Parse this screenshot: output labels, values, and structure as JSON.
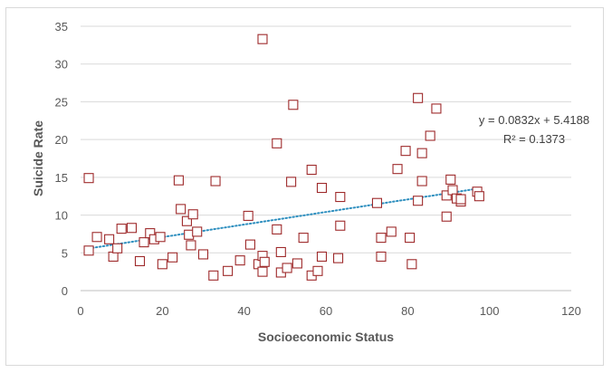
{
  "chart_data": {
    "type": "scatter",
    "xlabel": "Socioeconomic Status",
    "ylabel": "Suicide Rate",
    "xlim": [
      0,
      120
    ],
    "ylim": [
      0,
      35
    ],
    "xticks": [
      "0",
      "20",
      "40",
      "60",
      "80",
      "100",
      "120"
    ],
    "yticks": [
      "0",
      "5",
      "10",
      "15",
      "20",
      "25",
      "30",
      "35"
    ],
    "grid": "horizontal",
    "marker_color": "#9e2a2b",
    "trendline_color": "#2e8fbf",
    "trendline": {
      "slope": 0.0832,
      "intercept": 5.4188
    },
    "equation_label": "y = 0.0832x + 5.4188",
    "r2_label": "R² = 0.1373",
    "points": [
      [
        2,
        14.9
      ],
      [
        2,
        5.3
      ],
      [
        4,
        7.1
      ],
      [
        7,
        6.8
      ],
      [
        8,
        4.5
      ],
      [
        9,
        5.6
      ],
      [
        10,
        8.2
      ],
      [
        12.5,
        8.3
      ],
      [
        14.5,
        3.9
      ],
      [
        15.5,
        6.4
      ],
      [
        17,
        7.6
      ],
      [
        18,
        6.8
      ],
      [
        19.5,
        7.1
      ],
      [
        20,
        3.5
      ],
      [
        22.5,
        4.4
      ],
      [
        24,
        14.6
      ],
      [
        24.5,
        10.8
      ],
      [
        26,
        9.2
      ],
      [
        26.5,
        7.4
      ],
      [
        27,
        6.0
      ],
      [
        27.5,
        10.1
      ],
      [
        28.5,
        7.8
      ],
      [
        30,
        4.8
      ],
      [
        32.5,
        2.0
      ],
      [
        33,
        14.5
      ],
      [
        36,
        2.6
      ],
      [
        39,
        4.0
      ],
      [
        41,
        9.9
      ],
      [
        41.5,
        6.1
      ],
      [
        43.5,
        3.5
      ],
      [
        44.5,
        33.3
      ],
      [
        44.5,
        4.6
      ],
      [
        44.5,
        2.5
      ],
      [
        45,
        3.8
      ],
      [
        48,
        19.5
      ],
      [
        48,
        8.1
      ],
      [
        49,
        5.1
      ],
      [
        49,
        2.4
      ],
      [
        50.5,
        3.0
      ],
      [
        51.5,
        14.4
      ],
      [
        52,
        24.6
      ],
      [
        53,
        3.6
      ],
      [
        54.5,
        7.0
      ],
      [
        56.5,
        16.0
      ],
      [
        56.5,
        2.0
      ],
      [
        58,
        2.6
      ],
      [
        59,
        13.6
      ],
      [
        59,
        4.5
      ],
      [
        63,
        4.3
      ],
      [
        63.5,
        12.4
      ],
      [
        63.5,
        8.6
      ],
      [
        72.5,
        11.6
      ],
      [
        73.5,
        7.0
      ],
      [
        73.5,
        4.5
      ],
      [
        76,
        7.8
      ],
      [
        77.5,
        16.1
      ],
      [
        79.5,
        18.5
      ],
      [
        80.5,
        7.0
      ],
      [
        81,
        3.5
      ],
      [
        82.5,
        25.5
      ],
      [
        82.5,
        11.9
      ],
      [
        83.5,
        18.2
      ],
      [
        83.5,
        14.5
      ],
      [
        85.5,
        20.5
      ],
      [
        87,
        24.1
      ],
      [
        89.5,
        9.8
      ],
      [
        89.5,
        12.6
      ],
      [
        90.5,
        14.7
      ],
      [
        91,
        13.3
      ],
      [
        92,
        12.2
      ],
      [
        93,
        11.8
      ],
      [
        93,
        12.1
      ],
      [
        97,
        13.1
      ],
      [
        97.5,
        12.5
      ]
    ]
  }
}
